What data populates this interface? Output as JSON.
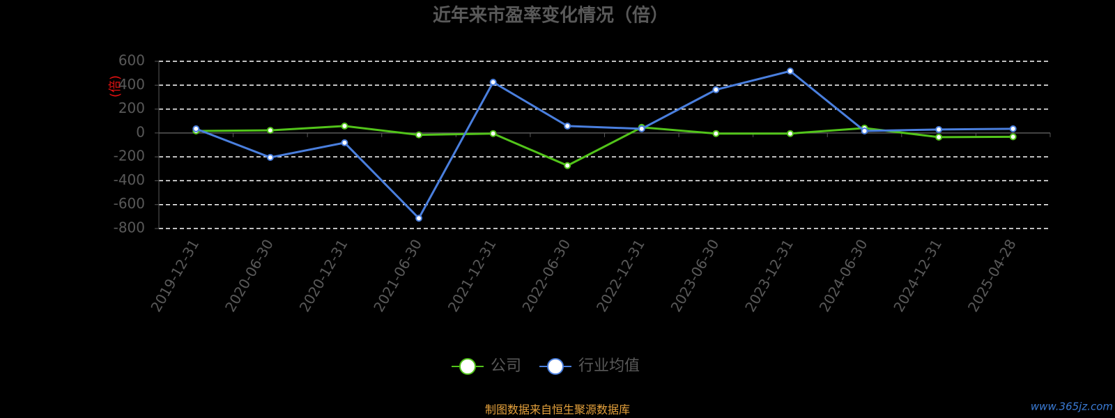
{
  "chart_data": {
    "type": "line",
    "title": "近年来市盈率变化情况（倍）",
    "y_label": "(倍)",
    "categories": [
      "2019-12-31",
      "2020-06-30",
      "2020-12-31",
      "2021-06-30",
      "2021-12-31",
      "2022-06-30",
      "2022-12-31",
      "2023-06-30",
      "2023-12-31",
      "2024-06-30",
      "2024-12-31",
      "2025-04-28"
    ],
    "series": [
      {
        "name": "公司",
        "color": "#52c41a",
        "values": [
          17,
          22,
          58,
          -16,
          -5,
          -273,
          47,
          -5,
          -5,
          41,
          -35,
          -32
        ]
      },
      {
        "name": "行业均值",
        "color": "#4a7fde",
        "values": [
          35,
          -205,
          -82,
          -714,
          425,
          58,
          35,
          362,
          518,
          17,
          29,
          35
        ]
      }
    ],
    "ylim": [
      -800,
      600
    ],
    "yticks": [
      -800,
      -600,
      -400,
      -200,
      0,
      200,
      400,
      600
    ],
    "grid": true,
    "source": "制图数据来自恒生聚源数据库",
    "watermark": "www.365jz.com"
  }
}
